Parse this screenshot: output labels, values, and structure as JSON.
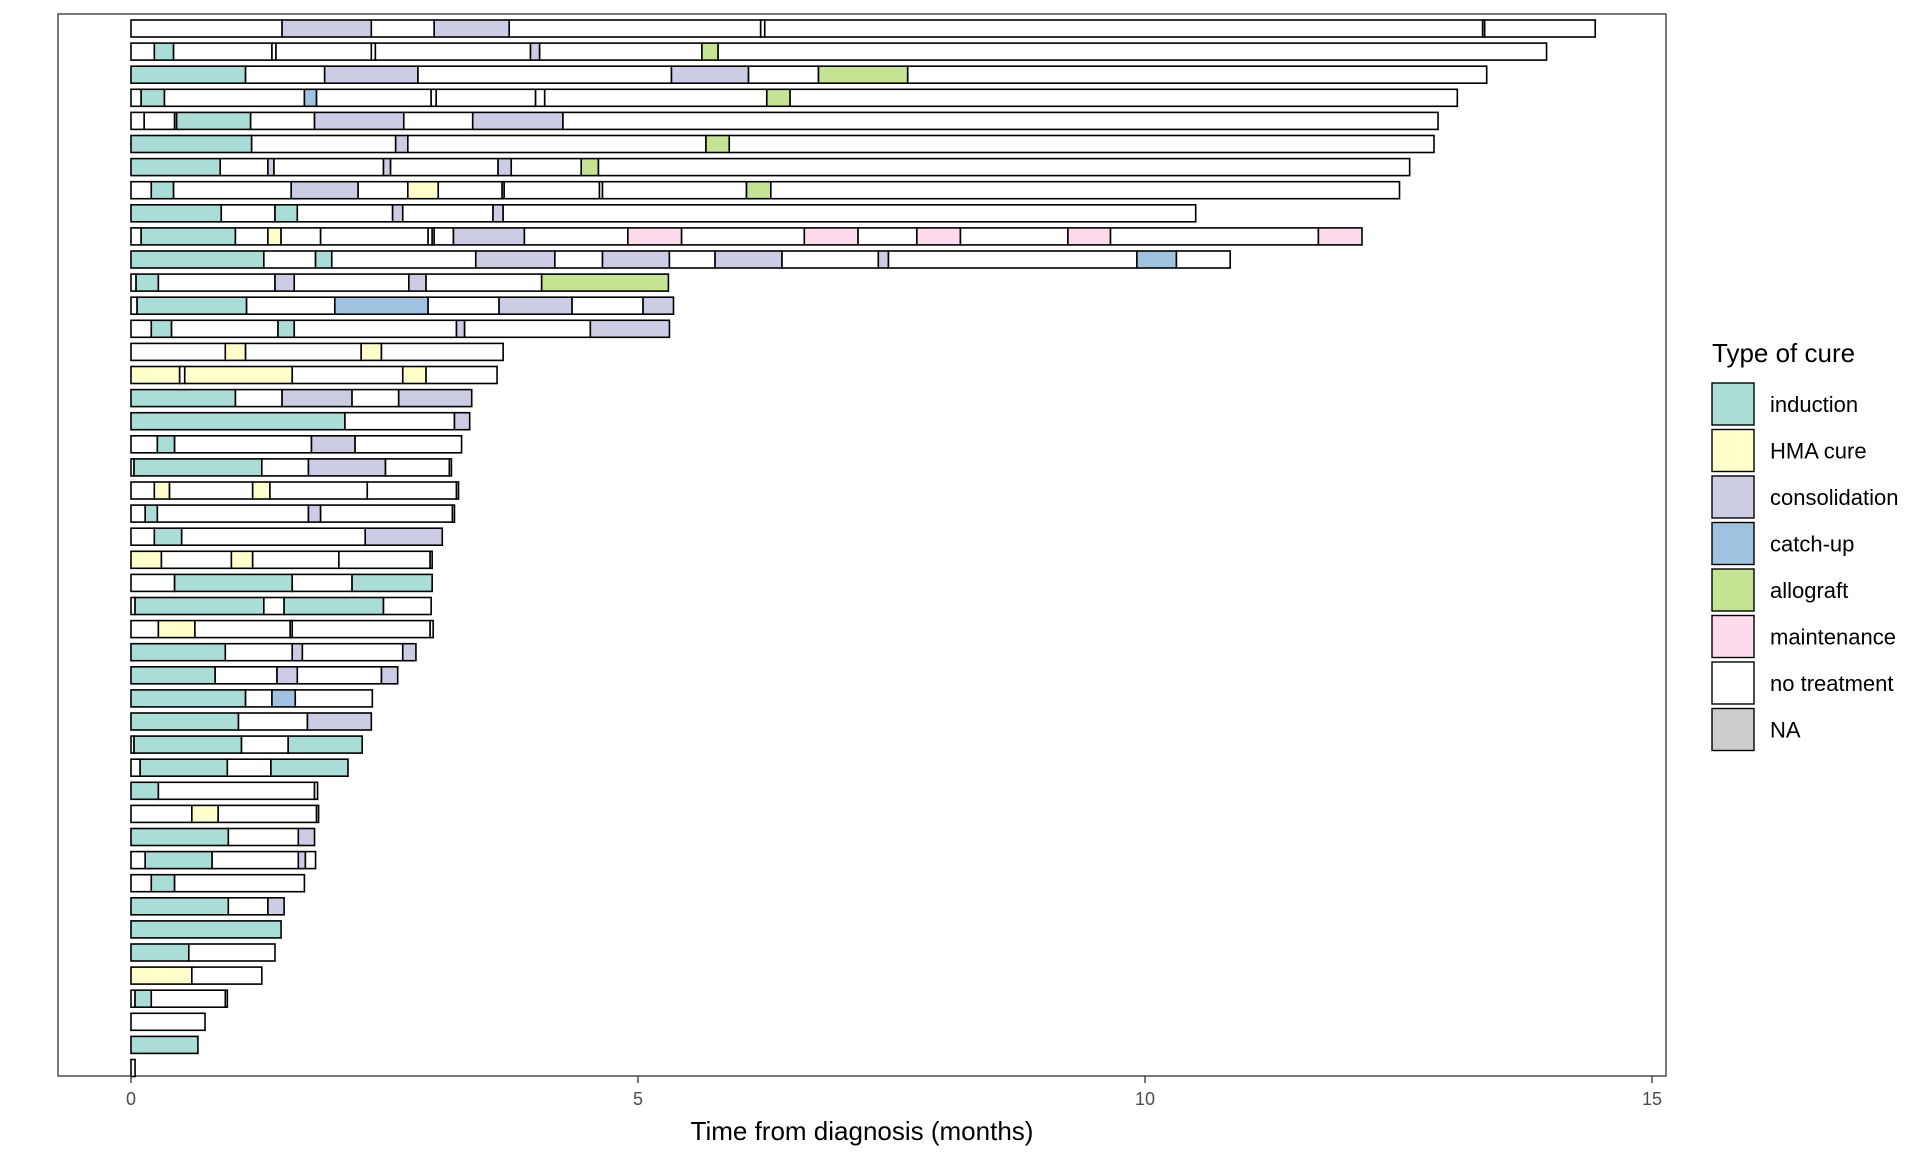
{
  "chart_data": {
    "type": "bar",
    "orientation": "horizontal",
    "stacked": true,
    "title": "",
    "xlabel": "Time from diagnosis (months)",
    "ylabel": "",
    "xlim": [
      -0.7,
      15.15
    ],
    "xticks": [
      0,
      5,
      10,
      15
    ],
    "grid": false,
    "legend": {
      "title": "Type of cure",
      "position": "right",
      "items": [
        {
          "key": "induction",
          "label": "induction",
          "color": "#A9DDD5"
        },
        {
          "key": "hma",
          "label": "HMA cure",
          "color": "#FFFFCC"
        },
        {
          "key": "consolidation",
          "label": "consolidation",
          "color": "#CCCCE5"
        },
        {
          "key": "catchup",
          "label": "catch-up",
          "color": "#9EC2E0"
        },
        {
          "key": "allograft",
          "label": "allograft",
          "color": "#C4E494"
        },
        {
          "key": "maintenance",
          "label": "maintenance",
          "color": "#FDDAEC"
        },
        {
          "key": "none",
          "label": "no treatment",
          "color": "#FFFFFF"
        },
        {
          "key": "na",
          "label": "NA",
          "color": "#CCCCCC"
        }
      ]
    },
    "patients": [
      [
        [
          "none",
          1.49
        ],
        [
          "consolidation",
          0.88
        ],
        [
          "none",
          0.62
        ],
        [
          "consolidation",
          0.74
        ],
        [
          "none",
          2.48
        ],
        [
          "none",
          0.04
        ],
        [
          "none",
          7.08
        ],
        [
          "none",
          0.02
        ],
        [
          "none",
          1.09
        ]
      ],
      [
        [
          "none",
          0.23
        ],
        [
          "induction",
          0.19
        ],
        [
          "none",
          0.97
        ],
        [
          "none",
          0.04
        ],
        [
          "none",
          0.94
        ],
        [
          "none",
          0.04
        ],
        [
          "none",
          1.53
        ],
        [
          "consolidation",
          0.09
        ],
        [
          "none",
          1.6
        ],
        [
          "allograft",
          0.16
        ],
        [
          "none",
          8.17
        ]
      ],
      [
        [
          "induction",
          1.13
        ],
        [
          "none",
          0.78
        ],
        [
          "consolidation",
          0.92
        ],
        [
          "none",
          2.5
        ],
        [
          "consolidation",
          0.76
        ],
        [
          "none",
          0.69
        ],
        [
          "allograft",
          0.88
        ],
        [
          "none",
          5.71
        ]
      ],
      [
        [
          "none",
          0.1
        ],
        [
          "induction",
          0.23
        ],
        [
          "none",
          1.38
        ],
        [
          "catchup",
          0.12
        ],
        [
          "none",
          1.13
        ],
        [
          "none",
          0.05
        ],
        [
          "none",
          0.98
        ],
        [
          "none",
          0.09
        ],
        [
          "none",
          2.19
        ],
        [
          "allograft",
          0.23
        ],
        [
          "none",
          6.58
        ]
      ],
      [
        [
          "none",
          0.13
        ],
        [
          "none",
          0.3
        ],
        [
          "none",
          0.02
        ],
        [
          "induction",
          0.73
        ],
        [
          "none",
          0.63
        ],
        [
          "consolidation",
          0.88
        ],
        [
          "none",
          0.68
        ],
        [
          "consolidation",
          0.89
        ],
        [
          "none",
          8.63
        ]
      ],
      [
        [
          "induction",
          1.19
        ],
        [
          "none",
          1.42
        ],
        [
          "consolidation",
          0.12
        ],
        [
          "none",
          2.94
        ],
        [
          "allograft",
          0.23
        ],
        [
          "none",
          6.95
        ]
      ],
      [
        [
          "induction",
          0.88
        ],
        [
          "none",
          0.47
        ],
        [
          "consolidation",
          0.06
        ],
        [
          "none",
          1.08
        ],
        [
          "consolidation",
          0.07
        ],
        [
          "none",
          1.06
        ],
        [
          "consolidation",
          0.13
        ],
        [
          "none",
          0.69
        ],
        [
          "allograft",
          0.17
        ],
        [
          "none",
          8.0
        ]
      ],
      [
        [
          "none",
          0.2
        ],
        [
          "induction",
          0.22
        ],
        [
          "none",
          1.16
        ],
        [
          "consolidation",
          0.66
        ],
        [
          "none",
          0.49
        ],
        [
          "hma",
          0.3
        ],
        [
          "none",
          0.63
        ],
        [
          "none",
          0.02
        ],
        [
          "none",
          0.94
        ],
        [
          "none",
          0.03
        ],
        [
          "none",
          1.42
        ],
        [
          "allograft",
          0.24
        ],
        [
          "none",
          6.2
        ]
      ],
      [
        [
          "induction",
          0.89
        ],
        [
          "none",
          0.53
        ],
        [
          "induction",
          0.22
        ],
        [
          "none",
          0.94
        ],
        [
          "consolidation",
          0.1
        ],
        [
          "none",
          0.89
        ],
        [
          "consolidation",
          0.1
        ],
        [
          "none",
          6.83
        ]
      ],
      [
        [
          "none",
          0.1
        ],
        [
          "induction",
          0.93
        ],
        [
          "none",
          0.32
        ],
        [
          "hma",
          0.13
        ],
        [
          "none",
          0.39
        ],
        [
          "none",
          1.06
        ],
        [
          "none",
          0.04
        ],
        [
          "none",
          0.02
        ],
        [
          "none",
          0.19
        ],
        [
          "consolidation",
          0.7
        ],
        [
          "none",
          1.02
        ],
        [
          "maintenance",
          0.53
        ],
        [
          "none",
          1.21
        ],
        [
          "maintenance",
          0.53
        ],
        [
          "none",
          0.58
        ],
        [
          "maintenance",
          0.43
        ],
        [
          "none",
          1.06
        ],
        [
          "maintenance",
          0.42
        ],
        [
          "none",
          2.05
        ],
        [
          "maintenance",
          0.43
        ]
      ],
      [
        [
          "induction",
          1.31
        ],
        [
          "none",
          0.51
        ],
        [
          "induction",
          0.16
        ],
        [
          "none",
          1.42
        ],
        [
          "consolidation",
          0.78
        ],
        [
          "none",
          0.47
        ],
        [
          "consolidation",
          0.66
        ],
        [
          "none",
          0.45
        ],
        [
          "consolidation",
          0.66
        ],
        [
          "none",
          0.95
        ],
        [
          "consolidation",
          0.1
        ],
        [
          "none",
          2.45
        ],
        [
          "catchup",
          0.39
        ],
        [
          "none",
          0.53
        ]
      ],
      [
        [
          "none",
          0.05
        ],
        [
          "induction",
          0.22
        ],
        [
          "none",
          1.15
        ],
        [
          "consolidation",
          0.19
        ],
        [
          "none",
          1.13
        ],
        [
          "consolidation",
          0.17
        ],
        [
          "none",
          1.14
        ],
        [
          "allograft",
          1.25
        ]
      ],
      [
        [
          "none",
          0.06
        ],
        [
          "induction",
          1.08
        ],
        [
          "none",
          0.87
        ],
        [
          "catchup",
          0.92
        ],
        [
          "none",
          0.7
        ],
        [
          "consolidation",
          0.72
        ],
        [
          "none",
          0.7
        ],
        [
          "consolidation",
          0.3
        ]
      ],
      [
        [
          "none",
          0.2
        ],
        [
          "induction",
          0.2
        ],
        [
          "none",
          1.05
        ],
        [
          "induction",
          0.16
        ],
        [
          "none",
          1.6
        ],
        [
          "consolidation",
          0.08
        ],
        [
          "none",
          1.24
        ],
        [
          "consolidation",
          0.78
        ]
      ],
      [
        [
          "none",
          0.93
        ],
        [
          "hma",
          0.2
        ],
        [
          "none",
          1.14
        ],
        [
          "hma",
          0.2
        ],
        [
          "none",
          1.2
        ]
      ],
      [
        [
          "hma",
          0.48
        ],
        [
          "none",
          0.05
        ],
        [
          "hma",
          1.06
        ],
        [
          "none",
          1.09
        ],
        [
          "hma",
          0.23
        ],
        [
          "none",
          0.7
        ]
      ],
      [
        [
          "induction",
          1.03
        ],
        [
          "none",
          0.46
        ],
        [
          "consolidation",
          0.69
        ],
        [
          "none",
          0.46
        ],
        [
          "consolidation",
          0.72
        ]
      ],
      [
        [
          "induction",
          2.11
        ],
        [
          "none",
          1.08
        ],
        [
          "consolidation",
          0.15
        ]
      ],
      [
        [
          "none",
          0.26
        ],
        [
          "induction",
          0.17
        ],
        [
          "none",
          1.35
        ],
        [
          "consolidation",
          0.43
        ],
        [
          "none",
          1.05
        ]
      ],
      [
        [
          "none",
          0.03
        ],
        [
          "induction",
          1.26
        ],
        [
          "none",
          0.46
        ],
        [
          "consolidation",
          0.76
        ],
        [
          "none",
          0.63
        ],
        [
          "none",
          0.02
        ]
      ],
      [
        [
          "none",
          0.23
        ],
        [
          "hma",
          0.15
        ],
        [
          "none",
          0.82
        ],
        [
          "hma",
          0.17
        ],
        [
          "none",
          0.96
        ],
        [
          "none",
          0.88
        ],
        [
          "none",
          0.02
        ]
      ],
      [
        [
          "none",
          0.14
        ],
        [
          "induction",
          0.12
        ],
        [
          "none",
          1.49
        ],
        [
          "consolidation",
          0.12
        ],
        [
          "none",
          1.3
        ],
        [
          "none",
          0.02
        ]
      ],
      [
        [
          "none",
          0.23
        ],
        [
          "induction",
          0.27
        ],
        [
          "none",
          1.81
        ],
        [
          "consolidation",
          0.76
        ]
      ],
      [
        [
          "hma",
          0.3
        ],
        [
          "none",
          0.69
        ],
        [
          "hma",
          0.21
        ],
        [
          "none",
          0.85
        ],
        [
          "none",
          0.9
        ],
        [
          "none",
          0.02
        ]
      ],
      [
        [
          "none",
          0.43
        ],
        [
          "induction",
          1.16
        ],
        [
          "none",
          0.59
        ],
        [
          "induction",
          0.79
        ]
      ],
      [
        [
          "none",
          0.04
        ],
        [
          "induction",
          1.27
        ],
        [
          "none",
          0.2
        ],
        [
          "induction",
          0.98
        ],
        [
          "none",
          0.47
        ]
      ],
      [
        [
          "none",
          0.27
        ],
        [
          "hma",
          0.36
        ],
        [
          "none",
          0.94
        ],
        [
          "none",
          0.02
        ],
        [
          "none",
          1.36
        ],
        [
          "none",
          0.03
        ]
      ],
      [
        [
          "induction",
          0.93
        ],
        [
          "none",
          0.66
        ],
        [
          "consolidation",
          0.1
        ],
        [
          "none",
          0.99
        ],
        [
          "consolidation",
          0.13
        ]
      ],
      [
        [
          "induction",
          0.83
        ],
        [
          "none",
          0.61
        ],
        [
          "consolidation",
          0.2
        ],
        [
          "none",
          0.83
        ],
        [
          "consolidation",
          0.16
        ]
      ],
      [
        [
          "induction",
          1.13
        ],
        [
          "none",
          0.26
        ],
        [
          "catchup",
          0.23
        ],
        [
          "none",
          0.76
        ]
      ],
      [
        [
          "induction",
          1.06
        ],
        [
          "none",
          0.68
        ],
        [
          "consolidation",
          0.63
        ]
      ],
      [
        [
          "none",
          0.03
        ],
        [
          "induction",
          1.06
        ],
        [
          "none",
          0.46
        ],
        [
          "induction",
          0.73
        ]
      ],
      [
        [
          "none",
          0.09
        ],
        [
          "induction",
          0.86
        ],
        [
          "none",
          0.43
        ],
        [
          "induction",
          0.76
        ]
      ],
      [
        [
          "induction",
          0.27
        ],
        [
          "none",
          1.54
        ],
        [
          "none",
          0.03
        ]
      ],
      [
        [
          "none",
          0.6
        ],
        [
          "hma",
          0.26
        ],
        [
          "none",
          0.97
        ],
        [
          "none",
          0.02
        ]
      ],
      [
        [
          "induction",
          0.96
        ],
        [
          "none",
          0.69
        ],
        [
          "consolidation",
          0.16
        ]
      ],
      [
        [
          "none",
          0.14
        ],
        [
          "induction",
          0.66
        ],
        [
          "none",
          0.85
        ],
        [
          "consolidation",
          0.07
        ],
        [
          "none",
          0.1
        ]
      ],
      [
        [
          "none",
          0.2
        ],
        [
          "induction",
          0.23
        ],
        [
          "none",
          1.28
        ]
      ],
      [
        [
          "induction",
          0.96
        ],
        [
          "none",
          0.39
        ],
        [
          "consolidation",
          0.16
        ]
      ],
      [
        [
          "induction",
          1.48
        ]
      ],
      [
        [
          "induction",
          0.57
        ],
        [
          "none",
          0.85
        ]
      ],
      [
        [
          "hma",
          0.6
        ],
        [
          "none",
          0.69
        ]
      ],
      [
        [
          "none",
          0.04
        ],
        [
          "induction",
          0.16
        ],
        [
          "none",
          0.73
        ],
        [
          "none",
          0.02
        ]
      ],
      [
        [
          "none",
          0.73
        ]
      ],
      [
        [
          "induction",
          0.66
        ]
      ],
      [
        [
          "none",
          0.04
        ]
      ]
    ]
  }
}
